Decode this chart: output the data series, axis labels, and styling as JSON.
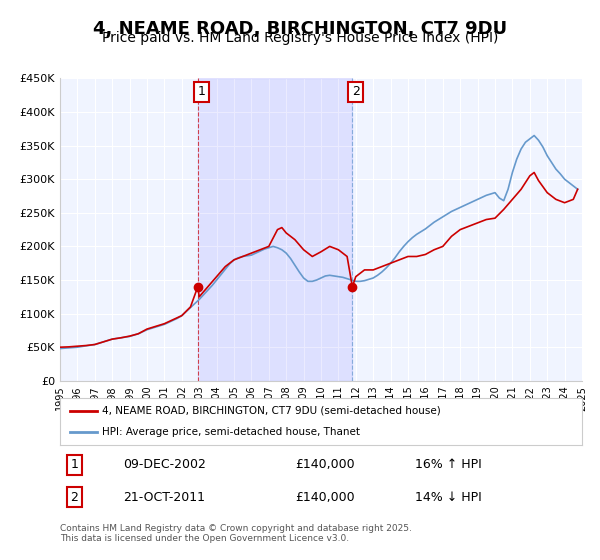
{
  "title": "4, NEAME ROAD, BIRCHINGTON, CT7 9DU",
  "subtitle": "Price paid vs. HM Land Registry's House Price Index (HPI)",
  "title_fontsize": 13,
  "subtitle_fontsize": 10,
  "background_color": "#ffffff",
  "plot_bg_color": "#f0f4ff",
  "grid_color": "#ffffff",
  "ylabel": "",
  "ylim": [
    0,
    450000
  ],
  "yticks": [
    0,
    50000,
    100000,
    150000,
    200000,
    250000,
    300000,
    350000,
    400000,
    450000
  ],
  "ytick_labels": [
    "£0",
    "£50K",
    "£100K",
    "£150K",
    "£200K",
    "£250K",
    "£300K",
    "£350K",
    "£400K",
    "£450K"
  ],
  "sale1_date": "2002-12-09",
  "sale1_price": 140000,
  "sale1_label": "1",
  "sale1_hpi_pct": "16% ↑ HPI",
  "sale1_date_str": "09-DEC-2002",
  "sale2_date": "2011-10-21",
  "sale2_price": 140000,
  "sale2_label": "2",
  "sale2_hpi_pct": "14% ↓ HPI",
  "sale2_date_str": "21-OCT-2011",
  "legend_line1": "4, NEAME ROAD, BIRCHINGTON, CT7 9DU (semi-detached house)",
  "legend_line2": "HPI: Average price, semi-detached house, Thanet",
  "line_color_red": "#cc0000",
  "line_color_blue": "#6699cc",
  "footnote": "Contains HM Land Registry data © Crown copyright and database right 2025.\nThis data is licensed under the Open Government Licence v3.0.",
  "xmin_year": 1995,
  "xmax_year": 2025,
  "xtick_years": [
    1995,
    1996,
    1997,
    1998,
    1999,
    2000,
    2001,
    2002,
    2003,
    2004,
    2005,
    2006,
    2007,
    2008,
    2009,
    2010,
    2011,
    2012,
    2013,
    2014,
    2015,
    2016,
    2017,
    2018,
    2019,
    2020,
    2021,
    2022,
    2023,
    2024,
    2025
  ],
  "hpi_data": {
    "years": [
      1995.0,
      1995.25,
      1995.5,
      1995.75,
      1996.0,
      1996.25,
      1996.5,
      1996.75,
      1997.0,
      1997.25,
      1997.5,
      1997.75,
      1998.0,
      1998.25,
      1998.5,
      1998.75,
      1999.0,
      1999.25,
      1999.5,
      1999.75,
      2000.0,
      2000.25,
      2000.5,
      2000.75,
      2001.0,
      2001.25,
      2001.5,
      2001.75,
      2002.0,
      2002.25,
      2002.5,
      2002.75,
      2003.0,
      2003.25,
      2003.5,
      2003.75,
      2004.0,
      2004.25,
      2004.5,
      2004.75,
      2005.0,
      2005.25,
      2005.5,
      2005.75,
      2006.0,
      2006.25,
      2006.5,
      2006.75,
      2007.0,
      2007.25,
      2007.5,
      2007.75,
      2008.0,
      2008.25,
      2008.5,
      2008.75,
      2009.0,
      2009.25,
      2009.5,
      2009.75,
      2010.0,
      2010.25,
      2010.5,
      2010.75,
      2011.0,
      2011.25,
      2011.5,
      2011.75,
      2012.0,
      2012.25,
      2012.5,
      2012.75,
      2013.0,
      2013.25,
      2013.5,
      2013.75,
      2014.0,
      2014.25,
      2014.5,
      2014.75,
      2015.0,
      2015.25,
      2015.5,
      2015.75,
      2016.0,
      2016.25,
      2016.5,
      2016.75,
      2017.0,
      2017.25,
      2017.5,
      2017.75,
      2018.0,
      2018.25,
      2018.5,
      2018.75,
      2019.0,
      2019.25,
      2019.5,
      2019.75,
      2020.0,
      2020.25,
      2020.5,
      2020.75,
      2021.0,
      2021.25,
      2021.5,
      2021.75,
      2022.0,
      2022.25,
      2022.5,
      2022.75,
      2023.0,
      2023.25,
      2023.5,
      2023.75,
      2024.0,
      2024.25,
      2024.5,
      2024.75
    ],
    "values": [
      48000,
      48500,
      49000,
      49500,
      50000,
      51000,
      52000,
      53000,
      54000,
      56000,
      58000,
      60000,
      62000,
      63000,
      64000,
      65000,
      66000,
      68000,
      70000,
      73000,
      76000,
      78000,
      80000,
      82000,
      84000,
      87000,
      90000,
      93000,
      97000,
      103000,
      109000,
      115000,
      121000,
      128000,
      135000,
      142000,
      150000,
      158000,
      166000,
      174000,
      180000,
      183000,
      185000,
      186000,
      187000,
      190000,
      193000,
      196000,
      198000,
      200000,
      198000,
      195000,
      190000,
      182000,
      172000,
      162000,
      153000,
      148000,
      148000,
      150000,
      153000,
      156000,
      157000,
      156000,
      155000,
      154000,
      152000,
      150000,
      148000,
      148000,
      149000,
      151000,
      153000,
      157000,
      162000,
      168000,
      175000,
      183000,
      192000,
      200000,
      207000,
      213000,
      218000,
      222000,
      226000,
      231000,
      236000,
      240000,
      244000,
      248000,
      252000,
      255000,
      258000,
      261000,
      264000,
      267000,
      270000,
      273000,
      276000,
      278000,
      280000,
      272000,
      268000,
      285000,
      310000,
      330000,
      345000,
      355000,
      360000,
      365000,
      358000,
      348000,
      335000,
      325000,
      315000,
      308000,
      300000,
      295000,
      290000,
      285000
    ]
  },
  "hpi_line_data": {
    "years": [
      1995.0,
      1995.25,
      1995.5,
      1995.75,
      1996.0,
      1996.25,
      1996.5,
      1996.75,
      1997.0,
      1997.25,
      1997.5,
      1997.75,
      1998.0,
      1998.25,
      1998.5,
      1998.75,
      1999.0,
      1999.25,
      1999.5,
      1999.75,
      2000.0,
      2000.25,
      2000.5,
      2000.75,
      2001.0,
      2001.25,
      2001.5,
      2001.75,
      2002.0,
      2002.25,
      2002.5,
      2002.75,
      2003.0,
      2003.25,
      2003.5,
      2003.75,
      2004.0,
      2004.25,
      2004.5,
      2004.75,
      2005.0,
      2005.25,
      2005.5,
      2005.75,
      2006.0,
      2006.25,
      2006.5,
      2006.75,
      2007.0,
      2007.25,
      2007.5,
      2007.75,
      2008.0,
      2008.25,
      2008.5,
      2008.75,
      2009.0,
      2009.25,
      2009.5,
      2009.75,
      2010.0,
      2010.25,
      2010.5,
      2010.75,
      2011.0,
      2011.25,
      2011.5,
      2011.75,
      2012.0,
      2012.25,
      2012.5,
      2012.75,
      2013.0,
      2013.25,
      2013.5,
      2013.75,
      2014.0,
      2014.25,
      2014.5,
      2014.75,
      2015.0,
      2015.25,
      2015.5,
      2015.75,
      2016.0,
      2016.25,
      2016.5,
      2016.75,
      2017.0,
      2017.25,
      2017.5,
      2017.75,
      2018.0,
      2018.25,
      2018.5,
      2018.75,
      2019.0,
      2019.25,
      2019.5,
      2019.75,
      2020.0,
      2020.25,
      2020.5,
      2020.75,
      2021.0,
      2021.25,
      2021.5,
      2021.75,
      2022.0,
      2022.25,
      2022.5,
      2022.75,
      2023.0,
      2023.25,
      2023.5,
      2023.75,
      2024.0,
      2024.25,
      2024.5,
      2024.75
    ],
    "values": [
      48000,
      48500,
      49000,
      49500,
      50000,
      51000,
      52000,
      53000,
      54000,
      56000,
      58000,
      60000,
      62000,
      63000,
      64000,
      65000,
      66000,
      68000,
      70000,
      73000,
      76000,
      78000,
      80000,
      82000,
      84000,
      87000,
      90000,
      93000,
      97000,
      103000,
      109000,
      115000,
      121000,
      128000,
      135000,
      142000,
      150000,
      158000,
      166000,
      174000,
      180000,
      183000,
      185000,
      186000,
      187000,
      190000,
      193000,
      196000,
      198000,
      200000,
      198000,
      195000,
      190000,
      182000,
      172000,
      162000,
      153000,
      148000,
      148000,
      150000,
      153000,
      156000,
      157000,
      156000,
      155000,
      154000,
      152000,
      150000,
      148000,
      148000,
      149000,
      151000,
      153000,
      157000,
      162000,
      168000,
      175000,
      183000,
      192000,
      200000,
      207000,
      213000,
      218000,
      222000,
      226000,
      231000,
      236000,
      240000,
      244000,
      248000,
      252000,
      255000,
      258000,
      261000,
      264000,
      267000,
      270000,
      273000,
      276000,
      278000,
      280000,
      272000,
      268000,
      285000,
      310000,
      330000,
      345000,
      355000,
      360000,
      365000,
      358000,
      348000,
      335000,
      325000,
      315000,
      308000,
      300000,
      295000,
      290000,
      285000
    ]
  },
  "price_line_data": {
    "years": [
      1995.0,
      1995.5,
      1996.0,
      1996.5,
      1997.0,
      1997.5,
      1998.0,
      1998.5,
      1999.0,
      1999.5,
      2000.0,
      2000.5,
      2001.0,
      2001.5,
      2002.0,
      2002.5,
      2002.92,
      2003.0,
      2003.5,
      2004.0,
      2004.5,
      2005.0,
      2005.5,
      2006.0,
      2006.5,
      2007.0,
      2007.5,
      2007.75,
      2008.0,
      2008.5,
      2009.0,
      2009.5,
      2010.0,
      2010.5,
      2011.0,
      2011.5,
      2011.8,
      2012.0,
      2012.5,
      2013.0,
      2013.5,
      2014.0,
      2014.5,
      2015.0,
      2015.5,
      2016.0,
      2016.5,
      2017.0,
      2017.5,
      2018.0,
      2018.5,
      2019.0,
      2019.5,
      2020.0,
      2020.5,
      2021.0,
      2021.5,
      2022.0,
      2022.25,
      2022.5,
      2023.0,
      2023.5,
      2024.0,
      2024.5,
      2024.75
    ],
    "values": [
      50000,
      50500,
      51500,
      52500,
      54000,
      58000,
      62000,
      64000,
      66500,
      70000,
      77000,
      81000,
      85000,
      91000,
      97000,
      110000,
      140000,
      125000,
      140000,
      155000,
      170000,
      180000,
      185000,
      190000,
      195000,
      200000,
      225000,
      228000,
      220000,
      210000,
      195000,
      185000,
      192000,
      200000,
      195000,
      185000,
      140000,
      155000,
      165000,
      165000,
      170000,
      175000,
      180000,
      185000,
      185000,
      188000,
      195000,
      200000,
      215000,
      225000,
      230000,
      235000,
      240000,
      242000,
      255000,
      270000,
      285000,
      305000,
      310000,
      298000,
      280000,
      270000,
      265000,
      270000,
      285000
    ]
  }
}
